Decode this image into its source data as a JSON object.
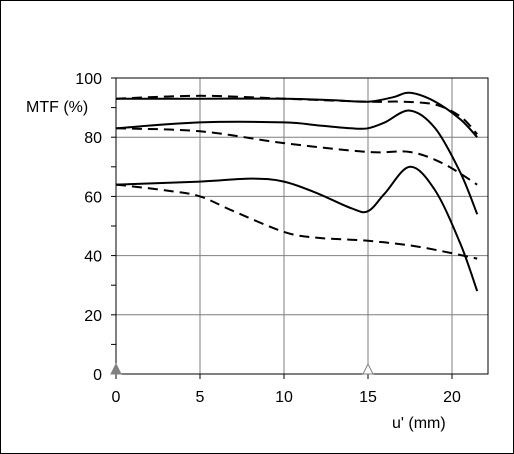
{
  "chart_data": {
    "type": "line",
    "ylabel": "MTF  (%)",
    "xlabel": "u' (mm)",
    "xlim": [
      0,
      22
    ],
    "ylim": [
      0,
      100
    ],
    "xticks": [
      0,
      5,
      10,
      15,
      20
    ],
    "yticks": [
      0,
      20,
      40,
      60,
      80,
      100
    ],
    "grid": true,
    "markers": [
      {
        "x": 0,
        "y": 0,
        "shape": "filled-triangle",
        "color": "#808080"
      },
      {
        "x": 15,
        "y": 0,
        "shape": "hollow-triangle",
        "color": "#808080"
      }
    ],
    "series": [
      {
        "style": "solid",
        "color": "#000000",
        "x": [
          0,
          5,
          10,
          13,
          15,
          16.5,
          17.5,
          19,
          20.5,
          21.5
        ],
        "y": [
          93,
          93,
          93,
          92.5,
          92,
          93.5,
          95,
          92,
          86,
          80
        ]
      },
      {
        "style": "dashed",
        "color": "#000000",
        "x": [
          0,
          5,
          10,
          15,
          17,
          19,
          20.5,
          21.5
        ],
        "y": [
          93,
          94,
          93,
          92,
          92,
          91,
          87,
          81
        ]
      },
      {
        "style": "solid",
        "color": "#000000",
        "x": [
          0,
          5,
          10,
          12,
          14,
          15,
          16,
          17.5,
          19,
          20.5,
          21.5
        ],
        "y": [
          83,
          85,
          85,
          84,
          83,
          83,
          85,
          89,
          83,
          68,
          54
        ]
      },
      {
        "style": "dashed",
        "color": "#000000",
        "x": [
          0,
          5,
          10,
          15,
          17.5,
          19.5,
          21.5
        ],
        "y": [
          83,
          82,
          78,
          75,
          75,
          71,
          64
        ]
      },
      {
        "style": "solid",
        "color": "#000000",
        "x": [
          0,
          5,
          8,
          10,
          12,
          14,
          15,
          16,
          17.5,
          19,
          20.5,
          21.5
        ],
        "y": [
          64,
          65,
          66,
          65,
          61,
          56,
          55,
          61,
          70,
          62,
          44,
          28
        ]
      },
      {
        "style": "dashed",
        "color": "#000000",
        "x": [
          0,
          3,
          5,
          7,
          10,
          12,
          15,
          18,
          21.5
        ],
        "y": [
          64,
          62,
          60,
          55,
          48,
          46,
          45,
          43,
          39
        ]
      }
    ]
  }
}
